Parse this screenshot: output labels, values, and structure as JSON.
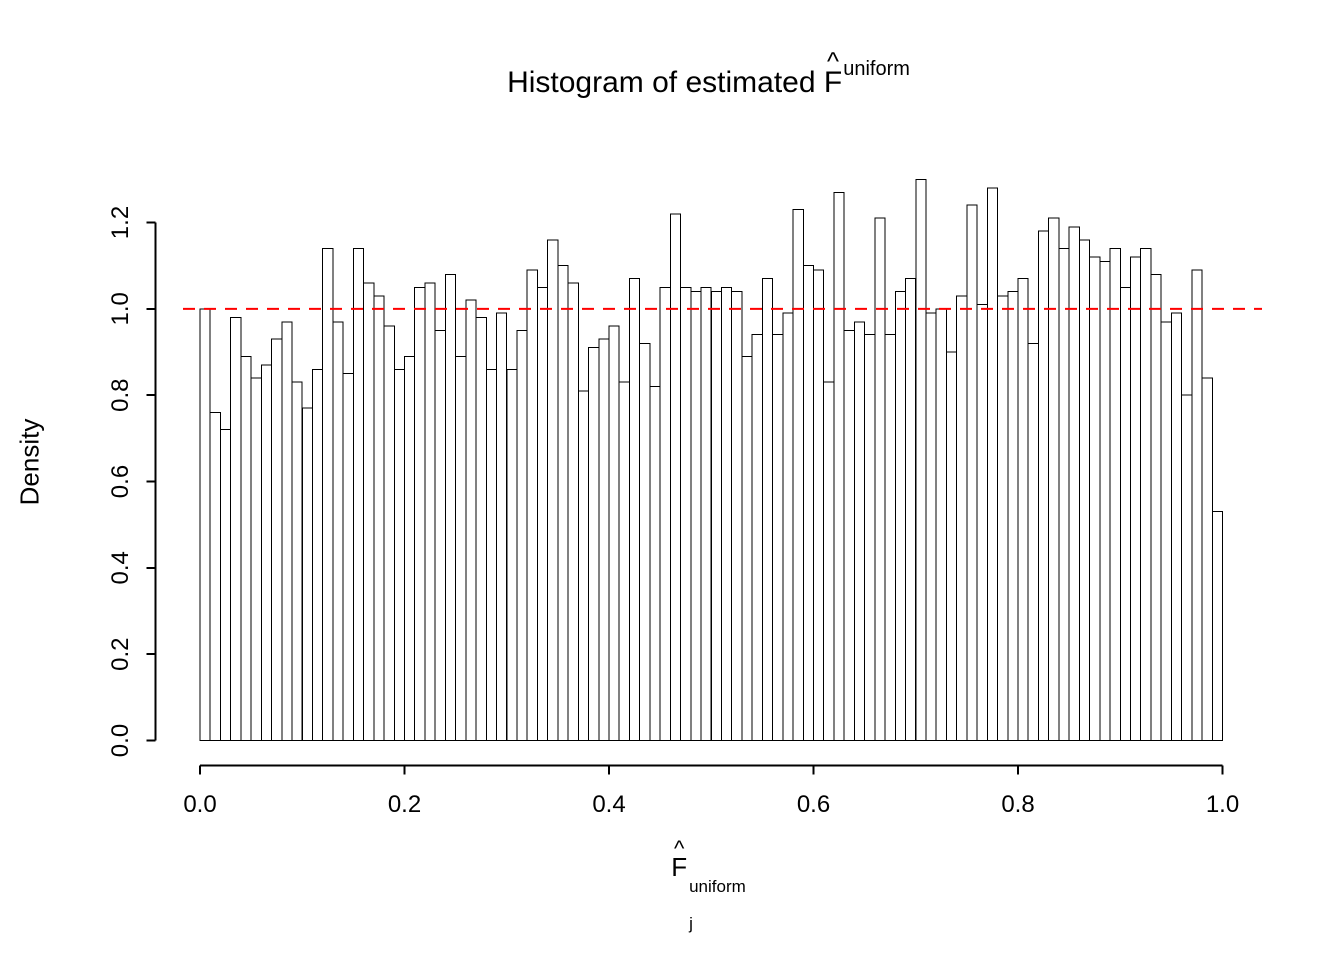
{
  "title": {
    "prefix": "Histogram of estimated",
    "symbol": "F",
    "hat": "^",
    "superscript": "uniform"
  },
  "y_axis": {
    "label": "Density",
    "tick_labels": [
      "0.0",
      "0.2",
      "0.4",
      "0.6",
      "0.8",
      "1.0",
      "1.2"
    ],
    "tick_values": [
      0,
      0.2,
      0.4,
      0.6,
      0.8,
      1.0,
      1.2
    ]
  },
  "x_axis": {
    "symbol": "F",
    "hat": "^",
    "subscript": "j",
    "superscript": "uniform",
    "tick_labels": [
      "0.0",
      "0.2",
      "0.4",
      "0.6",
      "0.8",
      "1.0"
    ],
    "tick_values": [
      0,
      0.2,
      0.4,
      0.6,
      0.8,
      1.0
    ]
  },
  "chart_data": {
    "type": "bar",
    "subtype": "histogram",
    "title": "Histogram of estimated F^uniform",
    "xlabel": "F_j^uniform",
    "ylabel": "Density",
    "xlim": [
      0,
      1
    ],
    "ylim": [
      0,
      1.2
    ],
    "bin_start": 0,
    "bin_width": 0.01,
    "grid": false,
    "bar_fill": "#FFFFFF",
    "bar_stroke": "#000000",
    "reference_line": {
      "y": 1.0,
      "color": "#FF0000",
      "style": "dashed"
    },
    "values": [
      1.0,
      0.76,
      0.72,
      0.98,
      0.89,
      0.84,
      0.87,
      0.93,
      0.97,
      0.83,
      0.77,
      0.86,
      1.14,
      0.97,
      0.85,
      1.14,
      1.06,
      1.03,
      0.96,
      0.86,
      0.89,
      1.05,
      1.06,
      0.95,
      1.08,
      0.89,
      1.02,
      0.98,
      0.86,
      0.99,
      0.86,
      0.95,
      1.09,
      1.05,
      1.16,
      1.1,
      1.06,
      0.81,
      0.91,
      0.93,
      0.96,
      0.83,
      1.07,
      0.92,
      0.82,
      1.05,
      1.22,
      1.05,
      1.04,
      1.05,
      1.04,
      1.05,
      1.04,
      0.89,
      0.94,
      1.07,
      0.94,
      0.99,
      1.23,
      1.1,
      1.09,
      0.83,
      1.27,
      0.95,
      0.97,
      0.94,
      1.21,
      0.94,
      1.04,
      1.07,
      1.3,
      0.99,
      1.0,
      0.9,
      1.03,
      1.24,
      1.01,
      1.28,
      1.03,
      1.04,
      1.07,
      0.92,
      1.18,
      1.21,
      1.14,
      1.19,
      1.16,
      1.12,
      1.11,
      1.14,
      1.05,
      1.12,
      1.14,
      1.08,
      0.97,
      0.99,
      0.8,
      1.09,
      0.84,
      0.53
    ]
  }
}
